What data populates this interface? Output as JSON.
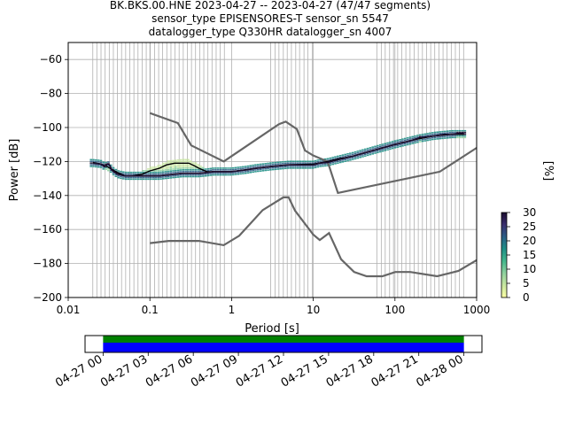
{
  "title_lines": [
    "BK.BKS.00.HNE   2023-04-27 -- 2023-04-27  (47/47 segments)",
    "sensor_type EPISENSORES-T sensor_sn 5547",
    "datalogger_type Q330HR datalogger_sn 4007"
  ],
  "chart_data": [
    {
      "type": "heatmap",
      "title": "BK.BKS.00.HNE   2023-04-27 -- 2023-04-27  (47/47 segments)",
      "xlabel": "Period [s]",
      "ylabel": "Power [dB]",
      "xscale": "log",
      "xlim": [
        0.01,
        1000
      ],
      "ylim": [
        -200,
        -50
      ],
      "grid": true,
      "x_ticks": [
        0.01,
        0.1,
        1,
        10,
        100,
        1000
      ],
      "x_tick_labels": [
        "0.01",
        "0.1",
        "1",
        "10",
        "100",
        "1000"
      ],
      "y_ticks": [
        -200,
        -180,
        -160,
        -140,
        -120,
        -100,
        -80,
        -60
      ],
      "y_tick_labels": [
        "−200",
        "−180",
        "−160",
        "−140",
        "−120",
        "−100",
        "−80",
        "−60"
      ],
      "colorbar": {
        "label": "[%]",
        "range": [
          0,
          30
        ],
        "ticks": [
          0,
          5,
          10,
          15,
          20,
          25,
          30
        ],
        "tick_labels": [
          "0",
          "5",
          "10",
          "15",
          "20",
          "25",
          "30"
        ],
        "colormap": [
          "#fcffa4",
          "#c8e6a0",
          "#8fd19e",
          "#43b78c",
          "#1f8f86",
          "#2b5e86",
          "#3b2f6e",
          "#1a0b2e"
        ]
      },
      "periods_vlines": [
        0.02,
        0.0224,
        0.0252,
        0.0283,
        0.0318,
        0.0357,
        0.0401,
        0.045,
        0.0505,
        0.0567,
        0.0637,
        0.0715,
        0.0803,
        0.0902,
        0.101,
        0.114,
        0.128,
        0.143,
        0.161,
        0.181,
        0.203,
        0.228,
        0.256,
        0.287,
        0.323,
        0.362,
        0.407,
        0.457,
        0.513,
        0.576,
        0.647,
        0.727,
        0.816,
        3.0,
        3.4,
        3.8,
        4.3,
        4.8,
        5.4,
        6.1,
        6.8,
        7.7,
        8.6,
        9.7,
        60,
        68,
        76,
        86,
        96,
        108,
        121,
        136,
        153,
        172,
        193,
        217,
        244,
        274,
        307,
        345,
        388,
        435,
        489,
        549,
        617,
        693
      ],
      "psd_mode": {
        "x": [
          0.02,
          0.025,
          0.028,
          0.03,
          0.032,
          0.034,
          0.04,
          0.05,
          0.06,
          0.07,
          0.08,
          0.1,
          0.13,
          0.16,
          0.2,
          0.25,
          0.3,
          0.4,
          0.5,
          0.6,
          0.8,
          1.0,
          1.5,
          2.0,
          3.0,
          5.0,
          8.0,
          10,
          12,
          15,
          20,
          30,
          50,
          70,
          100,
          150,
          200,
          300,
          400,
          500,
          600,
          700
        ],
        "y": [
          -121,
          -121.5,
          -123,
          -121.5,
          -122,
          -125,
          -127.5,
          -128.5,
          -128.5,
          -128.5,
          -128.5,
          -128.5,
          -128.5,
          -128,
          -127.5,
          -127,
          -127,
          -127,
          -126.5,
          -126,
          -126,
          -126,
          -125,
          -124,
          -123,
          -122,
          -122,
          -122,
          -121,
          -120.5,
          -119,
          -117,
          -114,
          -112,
          -110,
          -108,
          -106,
          -105,
          -104,
          -104,
          -103.5,
          -103.5
        ]
      },
      "psd_mean": {
        "x": [
          0.02,
          0.025,
          0.03,
          0.04,
          0.05,
          0.06,
          0.08,
          0.1,
          0.13,
          0.16,
          0.2,
          0.25,
          0.3,
          0.35,
          0.4,
          0.5,
          0.6,
          0.8,
          1.0,
          2.0,
          3.0,
          5.0,
          10,
          15,
          20,
          30,
          50,
          100,
          200,
          300,
          500,
          700
        ],
        "y": [
          -120.5,
          -121.5,
          -123,
          -126.5,
          -128.5,
          -128.5,
          -127.5,
          -125.5,
          -124,
          -122,
          -121,
          -121,
          -121,
          -122.5,
          -124,
          -126,
          -126,
          -126,
          -126,
          -124,
          -123,
          -122,
          -121.5,
          -120,
          -118.5,
          -117,
          -114,
          -110,
          -106.5,
          -105,
          -104,
          -104
        ]
      },
      "noise_model_high": {
        "x": [
          0.1,
          0.22,
          0.32,
          0.8,
          3.8,
          4.6,
          6.3,
          7.9,
          10,
          15,
          20,
          354,
          1000
        ],
        "y": [
          -91.5,
          -97.4,
          -110.5,
          -120,
          -98,
          -96.5,
          -101,
          -113.5,
          -116.5,
          -120,
          -138.5,
          -126,
          -112
        ]
      },
      "noise_model_low": {
        "x": [
          0.1,
          0.17,
          0.4,
          0.8,
          1.24,
          2.4,
          4.3,
          5.0,
          6.0,
          10,
          12,
          15.6,
          21.9,
          31.6,
          45,
          70,
          101,
          154,
          328,
          600,
          1000
        ],
        "y": [
          -168,
          -166.7,
          -166.7,
          -169.2,
          -163.7,
          -148.6,
          -141.1,
          -141.1,
          -149,
          -163,
          -166.2,
          -162.1,
          -177.5,
          -185,
          -187.5,
          -187.5,
          -185,
          -185,
          -187.5,
          -184.4,
          -178
        ]
      }
    },
    {
      "type": "bar",
      "x_tick_labels": [
        "04-27 00",
        "04-27 03",
        "04-27 06",
        "04-27 09",
        "04-27 12",
        "04-27 15",
        "04-27 18",
        "04-27 21",
        "04-28 00"
      ],
      "xlim_hours": [
        -1.2,
        25.2
      ],
      "coverage_segments": [
        {
          "start_hour": 0,
          "end_hour": 24,
          "color": "#008000"
        },
        {
          "start_hour": 0,
          "end_hour": 24,
          "color": "#0000ff"
        }
      ]
    }
  ]
}
